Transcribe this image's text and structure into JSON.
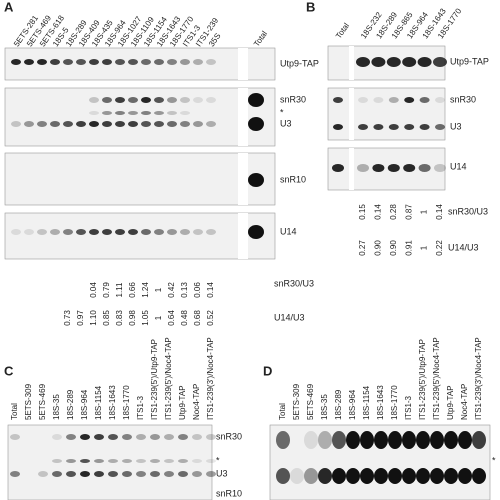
{
  "panels": [
    {
      "label": "A",
      "lanes": [
        "5ETS-281",
        "5ETS-469",
        "5ETS-618",
        "18S-5",
        "18S-289",
        "18S-409",
        "18S-435",
        "18S-964",
        "18S-1027",
        "18S-1109",
        "18S-1154",
        "18S-1643",
        "18S-1770",
        "ITS1-3",
        "ITS1-239",
        "35S",
        "Total"
      ],
      "blot_labels": [
        "Utp9-TAP",
        "snR30",
        "*",
        "U3",
        "snR10",
        "U14"
      ],
      "ratio_rows": [
        {
          "label": "snR30/U3",
          "values": [
            "0.04",
            "0.79",
            "1.11",
            "0.66",
            "1.24",
            "1",
            "0.42",
            "0.13",
            "0.06",
            "0.14"
          ]
        },
        {
          "label": "U14/U3",
          "values": [
            "0.73",
            "0.97",
            "1.10",
            "0.85",
            "0.83",
            "0.98",
            "1.05",
            "1",
            "0.64",
            "0.48",
            "0.68",
            "0.52"
          ]
        }
      ]
    },
    {
      "label": "B",
      "lanes": [
        "Total",
        "18S-232",
        "18S-289",
        "18S-865",
        "18S-964",
        "18S-1643",
        "18S-1770"
      ],
      "blot_labels": [
        "Utp9-TAP",
        "snR30",
        "U3",
        "U14"
      ],
      "ratio_rows": [
        {
          "label": "snR30/U3",
          "values": [
            "0.15",
            "0.14",
            "0.28",
            "0.87",
            "1",
            "0.14"
          ]
        },
        {
          "label": "U14/U3",
          "values": [
            "0.27",
            "0.90",
            "0.90",
            "0.91",
            "1",
            "0.22"
          ]
        }
      ]
    },
    {
      "label": "C",
      "lanes": [
        "Total",
        "5ETS-309",
        "5ETS-469",
        "18S-35",
        "18S-289",
        "18S-964",
        "18S-1154",
        "18S-1643",
        "18S-1770",
        "ITS1-3",
        "ITS1-239(5')/Utp9-TAP",
        "ITS1-239(5')/Noc4-TAP",
        "Utp9-TAP",
        "Noc4-TAP",
        "ITS1-239(3')/Noc4-TAP"
      ],
      "blot_labels": [
        "snR30",
        "*",
        "U3",
        "snR10"
      ]
    },
    {
      "label": "D",
      "lanes": [
        "Total",
        "5ETS-309",
        "5ETS-469",
        "18S-35",
        "18S-289",
        "18S-964",
        "18S-1154",
        "18S-1643",
        "18S-1770",
        "ITS1-3",
        "ITS1-239(5')/Utp9-TAP",
        "ITS1-239(5')/Noc4-TAP",
        "Utp9-TAP",
        "Noc4-TAP",
        "ITS1-239(3')/Noc4-TAP"
      ],
      "blot_labels": [
        "*"
      ]
    }
  ]
}
